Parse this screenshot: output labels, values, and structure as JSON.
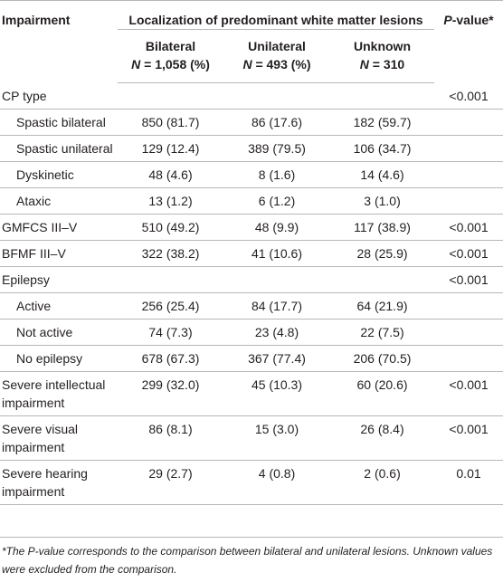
{
  "table": {
    "header": {
      "impairment": "Impairment",
      "localization": "Localization of predominant white matter lesions",
      "pvalue_italic": "P",
      "pvalue_rest": "-value*",
      "columns": [
        {
          "name": "Bilateral",
          "n_label": "N",
          "n_value": " = 1,058 (%)"
        },
        {
          "name": "Unilateral",
          "n_label": "N",
          "n_value": " = 493 (%)"
        },
        {
          "name": "Unknown",
          "n_label": "N",
          "n_value": " = 310"
        }
      ]
    },
    "rows": [
      {
        "label": "CP type",
        "sub": false,
        "bilateral": "",
        "unilateral": "",
        "unknown": "",
        "p": "<0.001"
      },
      {
        "label": "Spastic bilateral",
        "sub": true,
        "bilateral": "850 (81.7)",
        "unilateral": "86 (17.6)",
        "unknown": "182 (59.7)",
        "p": ""
      },
      {
        "label": "Spastic unilateral",
        "sub": true,
        "bilateral": "129 (12.4)",
        "unilateral": "389 (79.5)",
        "unknown": "106 (34.7)",
        "p": ""
      },
      {
        "label": "Dyskinetic",
        "sub": true,
        "bilateral": "48 (4.6)",
        "unilateral": "8 (1.6)",
        "unknown": "14 (4.6)",
        "p": ""
      },
      {
        "label": "Ataxic",
        "sub": true,
        "bilateral": "13 (1.2)",
        "unilateral": "6 (1.2)",
        "unknown": "3 (1.0)",
        "p": ""
      },
      {
        "label": "GMFCS III–V",
        "sub": false,
        "bilateral": "510 (49.2)",
        "unilateral": "48 (9.9)",
        "unknown": "117 (38.9)",
        "p": "<0.001"
      },
      {
        "label": "BFMF III–V",
        "sub": false,
        "bilateral": "322 (38.2)",
        "unilateral": "41 (10.6)",
        "unknown": "28 (25.9)",
        "p": "<0.001"
      },
      {
        "label": "Epilepsy",
        "sub": false,
        "bilateral": "",
        "unilateral": "",
        "unknown": "",
        "p": "<0.001"
      },
      {
        "label": "Active",
        "sub": true,
        "bilateral": "256 (25.4)",
        "unilateral": "84 (17.7)",
        "unknown": "64 (21.9)",
        "p": ""
      },
      {
        "label": "Not active",
        "sub": true,
        "bilateral": "74 (7.3)",
        "unilateral": "23 (4.8)",
        "unknown": "22 (7.5)",
        "p": ""
      },
      {
        "label": "No epilepsy",
        "sub": true,
        "bilateral": "678 (67.3)",
        "unilateral": "367 (77.4)",
        "unknown": "206 (70.5)",
        "p": ""
      },
      {
        "label": "Severe intellectual impairment",
        "sub": false,
        "bilateral": "299 (32.0)",
        "unilateral": "45 (10.3)",
        "unknown": "60 (20.6)",
        "p": "<0.001"
      },
      {
        "label": "Severe visual impairment",
        "sub": false,
        "bilateral": "86 (8.1)",
        "unilateral": "15 (3.0)",
        "unknown": "26 (8.4)",
        "p": "<0.001"
      },
      {
        "label": "Severe hearing impairment",
        "sub": false,
        "bilateral": "29 (2.7)",
        "unilateral": "4 (0.8)",
        "unknown": "2 (0.6)",
        "p": "0.01"
      }
    ]
  },
  "footnote": "*The P-value corresponds to the comparison between bilateral and unilateral lesions. Unknown values were excluded from the comparison."
}
